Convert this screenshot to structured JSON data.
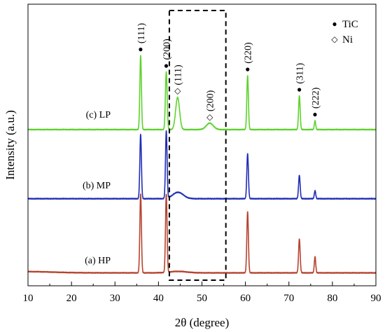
{
  "chart_data": {
    "type": "line",
    "xlabel": "2θ (degree)",
    "ylabel": "Intensity (a.u.)",
    "xlim": [
      10,
      90
    ],
    "xticks": [
      10,
      20,
      30,
      40,
      50,
      60,
      70,
      80,
      90
    ],
    "grid": false,
    "legend": {
      "placement": "top-right",
      "entries": [
        {
          "marker": "●",
          "label": "TiC"
        },
        {
          "marker": "◇",
          "label": "Ni"
        }
      ]
    },
    "highlight_region": {
      "x_range": [
        42.5,
        55.5
      ],
      "style": "dashed-box"
    },
    "series": [
      {
        "name": "(a) HP",
        "color": "#b5432e",
        "baseline": 0.03,
        "baseline_slope": 0.015,
        "peaks": [
          {
            "x": 35.9,
            "height": 0.98,
            "width": 0.18
          },
          {
            "x": 41.8,
            "height": 0.97,
            "width": 0.18
          },
          {
            "x": 44.5,
            "height": 0.018,
            "width": 2.0
          },
          {
            "x": 60.5,
            "height": 0.76,
            "width": 0.18
          },
          {
            "x": 72.4,
            "height": 0.42,
            "width": 0.18
          },
          {
            "x": 76.0,
            "height": 0.2,
            "width": 0.16
          }
        ]
      },
      {
        "name": "(b) MP",
        "color": "#1f2db5",
        "baseline": 0.02,
        "baseline_slope": 0.0,
        "peaks": [
          {
            "x": 35.9,
            "height": 0.8,
            "width": 0.18
          },
          {
            "x": 41.8,
            "height": 0.84,
            "width": 0.18
          },
          {
            "x": 44.5,
            "height": 0.08,
            "width": 1.2
          },
          {
            "x": 60.5,
            "height": 0.56,
            "width": 0.18
          },
          {
            "x": 72.4,
            "height": 0.29,
            "width": 0.18
          },
          {
            "x": 76.0,
            "height": 0.1,
            "width": 0.16
          }
        ]
      },
      {
        "name": "(c) LP",
        "color": "#5ed22c",
        "baseline": 0.0,
        "baseline_slope": 0.0,
        "peaks": [
          {
            "x": 35.9,
            "height": 0.92,
            "width": 0.18
          },
          {
            "x": 41.8,
            "height": 0.72,
            "width": 0.2
          },
          {
            "x": 44.4,
            "height": 0.4,
            "width": 0.45
          },
          {
            "x": 51.8,
            "height": 0.08,
            "width": 0.8
          },
          {
            "x": 60.5,
            "height": 0.67,
            "width": 0.18
          },
          {
            "x": 72.4,
            "height": 0.42,
            "width": 0.18
          },
          {
            "x": 76.0,
            "height": 0.11,
            "width": 0.16
          }
        ]
      }
    ],
    "annotations": [
      {
        "label": "(111)",
        "marker": "●",
        "x": 35.9,
        "series": "(c) LP"
      },
      {
        "label": "(200)",
        "marker": "●",
        "x": 41.8,
        "series": "(c) LP"
      },
      {
        "label": "(111)",
        "marker": "◇",
        "x": 44.4,
        "series": "(c) LP"
      },
      {
        "label": "(200)",
        "marker": "◇",
        "x": 51.8,
        "series": "(c) LP"
      },
      {
        "label": "(220)",
        "marker": "●",
        "x": 60.5,
        "series": "(c) LP"
      },
      {
        "label": "(311)",
        "marker": "●",
        "x": 72.4,
        "series": "(c) LP"
      },
      {
        "label": "(222)",
        "marker": "●",
        "x": 76.0,
        "series": "(c) LP"
      }
    ]
  }
}
